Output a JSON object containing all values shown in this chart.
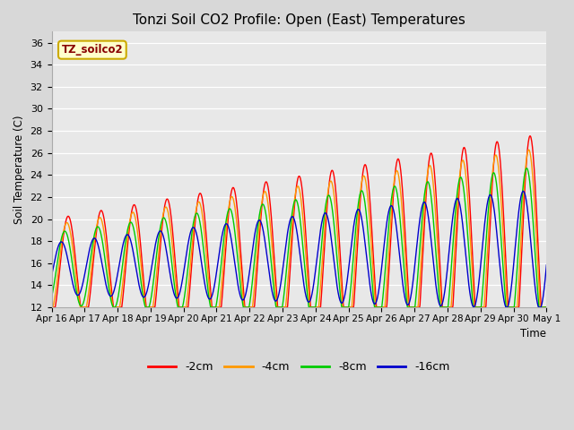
{
  "title": "Tonzi Soil CO2 Profile: Open (East) Temperatures",
  "xlabel": "Time",
  "ylabel": "Soil Temperature (C)",
  "ylim": [
    12,
    37
  ],
  "yticks": [
    12,
    14,
    16,
    18,
    20,
    22,
    24,
    26,
    28,
    30,
    32,
    34,
    36
  ],
  "legend_label": "TZ_soilco2",
  "legend_box_color": "#ffffcc",
  "legend_box_edge": "#ccaa00",
  "series_labels": [
    "-2cm",
    "-4cm",
    "-8cm",
    "-16cm"
  ],
  "series_colors": [
    "#ff0000",
    "#ff9900",
    "#00cc00",
    "#0000cc"
  ],
  "fig_bg_color": "#d8d8d8",
  "plot_bg_color": "#e8e8e8",
  "n_days": 15,
  "points_per_day": 96,
  "x_tick_labels": [
    "Apr 16",
    "Apr 17",
    "Apr 18",
    "Apr 19",
    "Apr 20",
    "Apr 21",
    "Apr 22",
    "Apr 23",
    "Apr 24",
    "Apr 25",
    "Apr 26",
    "Apr 27",
    "Apr 28",
    "Apr 29",
    "Apr 30",
    "May 1"
  ]
}
